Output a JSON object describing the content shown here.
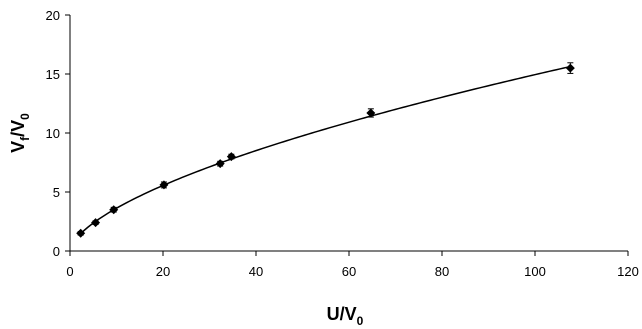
{
  "chart_data": {
    "type": "scatter",
    "title": "",
    "xlabel": {
      "main": "U/V",
      "sub": "0"
    },
    "ylabel": {
      "main": "V",
      "sub1": "f",
      "mid": "/V",
      "sub2": "0"
    },
    "xlim": [
      0,
      120
    ],
    "ylim": [
      0,
      20
    ],
    "x_ticks": [
      "0",
      "20",
      "40",
      "60",
      "80",
      "100",
      "120"
    ],
    "y_ticks": [
      "0",
      "5",
      "10",
      "15",
      "20"
    ],
    "grid": false,
    "legend": "none",
    "marker": "diamond",
    "colors": {
      "marker": "#000000",
      "line": "#000000",
      "axis": "#000000"
    },
    "series": [
      {
        "points": [
          {
            "x": 2.3,
            "y": 1.5,
            "err": 0.15
          },
          {
            "x": 5.5,
            "y": 2.4,
            "err": 0.15
          },
          {
            "x": 9.4,
            "y": 3.5,
            "err": 0.2
          },
          {
            "x": 20.2,
            "y": 5.6,
            "err": 0.25
          },
          {
            "x": 32.3,
            "y": 7.4,
            "err": 0.2
          },
          {
            "x": 34.7,
            "y": 8.0,
            "err": 0.2
          },
          {
            "x": 64.7,
            "y": 11.7,
            "err": 0.35
          },
          {
            "x": 107.6,
            "y": 15.5,
            "err": 0.45
          }
        ]
      }
    ],
    "trendline": {
      "type": "power",
      "coef": 0.88,
      "exp": 0.615,
      "x_range": [
        2.3,
        107.6
      ]
    }
  }
}
